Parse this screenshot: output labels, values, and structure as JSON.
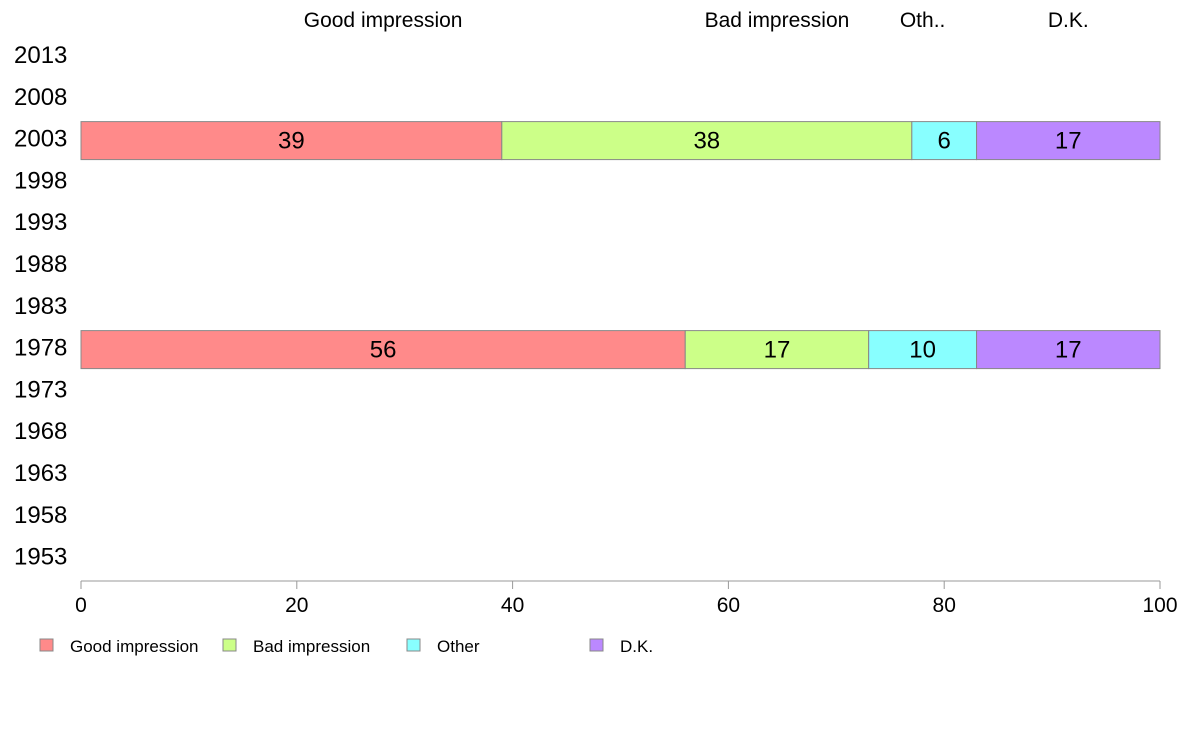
{
  "chart_data": {
    "type": "bar",
    "orientation": "horizontal",
    "stacked": true,
    "categories": [
      "2013",
      "2008",
      "2003",
      "1998",
      "1993",
      "1988",
      "1983",
      "1978",
      "1973",
      "1968",
      "1963",
      "1958",
      "1953"
    ],
    "series": [
      {
        "name": "Good impression",
        "header_label": "Good impression",
        "color": "#ff8a8a",
        "values": [
          null,
          null,
          39,
          null,
          null,
          null,
          null,
          56,
          null,
          null,
          null,
          null,
          null
        ]
      },
      {
        "name": "Bad impression",
        "header_label": "Bad impression",
        "color": "#ccff88",
        "values": [
          null,
          null,
          38,
          null,
          null,
          null,
          null,
          17,
          null,
          null,
          null,
          null,
          null
        ]
      },
      {
        "name": "Other",
        "header_label": "Oth..",
        "color": "#88ffff",
        "values": [
          null,
          null,
          6,
          null,
          null,
          null,
          null,
          10,
          null,
          null,
          null,
          null,
          null
        ]
      },
      {
        "name": "D.K.",
        "header_label": "D.K.",
        "color": "#bb88ff",
        "values": [
          null,
          null,
          17,
          null,
          null,
          null,
          null,
          17,
          null,
          null,
          null,
          null,
          null
        ]
      }
    ],
    "xlim": [
      0,
      100
    ],
    "x_ticks": [
      "0",
      "20",
      "40",
      "60",
      "80",
      "100"
    ],
    "grid": false,
    "legend_position": "bottom-left"
  }
}
